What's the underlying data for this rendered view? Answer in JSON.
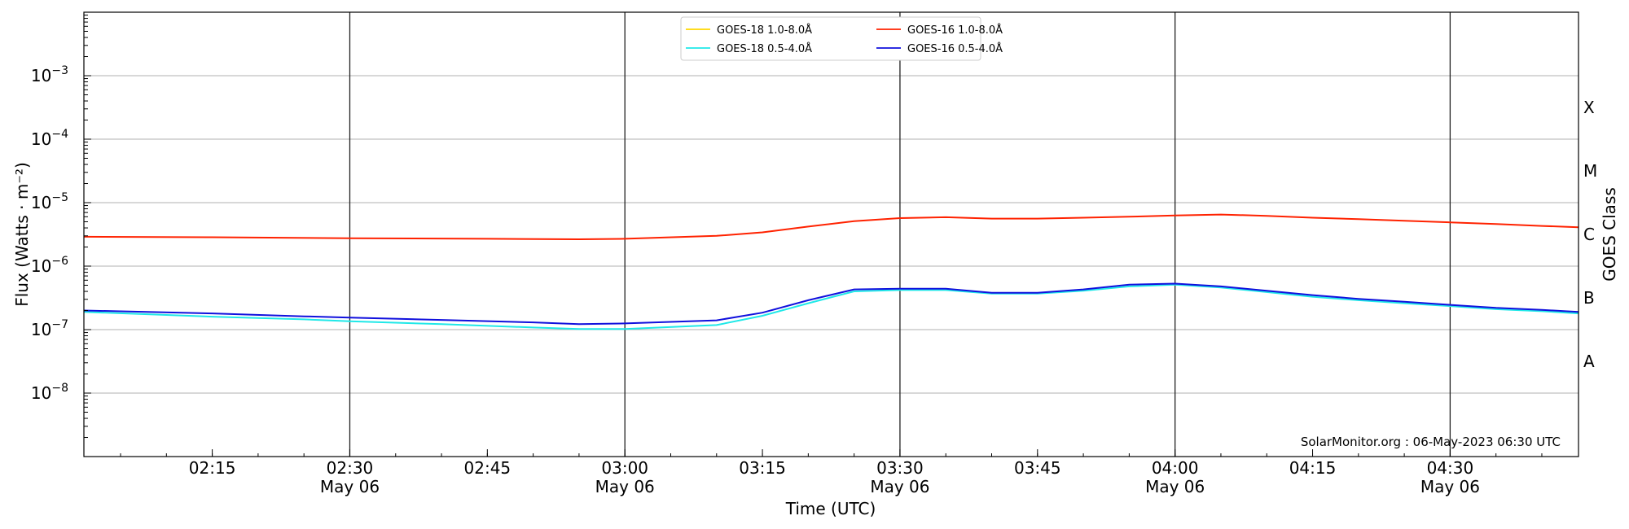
{
  "chart_data": {
    "type": "line",
    "xlabel": "Time (UTC)",
    "ylabel": "Flux (Watts · m⁻²)",
    "y2label": "GOES Class",
    "yscale": "log",
    "xlim": [
      "02:01",
      "04:44"
    ],
    "ylim": [
      1e-09,
      0.01
    ],
    "grid": "horizontal",
    "legend": "top-center",
    "x_ticks": [
      {
        "time": "02:15",
        "label": "02:15",
        "sub": ""
      },
      {
        "time": "02:30",
        "label": "02:30",
        "sub": "May 06"
      },
      {
        "time": "02:45",
        "label": "02:45",
        "sub": ""
      },
      {
        "time": "03:00",
        "label": "03:00",
        "sub": "May 06"
      },
      {
        "time": "03:15",
        "label": "03:15",
        "sub": ""
      },
      {
        "time": "03:30",
        "label": "03:30",
        "sub": "May 06"
      },
      {
        "time": "03:45",
        "label": "03:45",
        "sub": ""
      },
      {
        "time": "04:00",
        "label": "04:00",
        "sub": "May 06"
      },
      {
        "time": "04:15",
        "label": "04:15",
        "sub": ""
      },
      {
        "time": "04:30",
        "label": "04:30",
        "sub": "May 06"
      }
    ],
    "vlines": [
      "02:30",
      "03:00",
      "03:30",
      "04:00",
      "04:30"
    ],
    "y_ticks": [
      {
        "exp": -8,
        "label": "10",
        "sup": "−8"
      },
      {
        "exp": -7,
        "label": "10",
        "sup": "−7"
      },
      {
        "exp": -6,
        "label": "10",
        "sup": "−6"
      },
      {
        "exp": -5,
        "label": "10",
        "sup": "−5"
      },
      {
        "exp": -4,
        "label": "10",
        "sup": "−4"
      },
      {
        "exp": -3,
        "label": "10",
        "sup": "−3"
      }
    ],
    "goes_classes": [
      {
        "label": "A",
        "exp": -7.5
      },
      {
        "label": "B",
        "exp": -6.5
      },
      {
        "label": "C",
        "exp": -5.5
      },
      {
        "label": "M",
        "exp": -4.5
      },
      {
        "label": "X",
        "exp": -3.5
      }
    ],
    "series": [
      {
        "name": "GOES-18 1.0-8.0Å",
        "color": "#FFD700",
        "x": [],
        "y": []
      },
      {
        "name": "GOES-18 0.5-4.0Å",
        "color": "#20E8E8",
        "x": [
          "02:01",
          "02:15",
          "02:25",
          "02:30",
          "02:40",
          "02:50",
          "02:55",
          "03:00",
          "03:10",
          "03:15",
          "03:20",
          "03:25",
          "03:30",
          "03:35",
          "03:40",
          "03:45",
          "03:50",
          "03:55",
          "04:00",
          "04:05",
          "04:10",
          "04:15",
          "04:20",
          "04:25",
          "04:30",
          "04:35",
          "04:40",
          "04:44"
        ],
        "y": [
          1.9e-07,
          1.6e-07,
          1.45e-07,
          1.35e-07,
          1.22e-07,
          1.08e-07,
          1.02e-07,
          1.02e-07,
          1.18e-07,
          1.65e-07,
          2.6e-07,
          4e-07,
          4.2e-07,
          4.2e-07,
          3.7e-07,
          3.7e-07,
          4.1e-07,
          4.8e-07,
          5.1e-07,
          4.6e-07,
          3.9e-07,
          3.3e-07,
          2.9e-07,
          2.6e-07,
          2.35e-07,
          2.1e-07,
          1.95e-07,
          1.8e-07
        ]
      },
      {
        "name": "GOES-16 1.0-8.0Å",
        "color": "#FF2200",
        "x": [
          "02:01",
          "02:15",
          "02:30",
          "02:45",
          "02:55",
          "03:00",
          "03:10",
          "03:15",
          "03:20",
          "03:25",
          "03:30",
          "03:35",
          "03:40",
          "03:45",
          "03:50",
          "03:55",
          "04:00",
          "04:05",
          "04:10",
          "04:15",
          "04:20",
          "04:25",
          "04:30",
          "04:35",
          "04:40",
          "04:44"
        ],
        "y": [
          2.9e-06,
          2.85e-06,
          2.75e-06,
          2.7e-06,
          2.65e-06,
          2.7e-06,
          3e-06,
          3.4e-06,
          4.2e-06,
          5.1e-06,
          5.7e-06,
          5.9e-06,
          5.6e-06,
          5.6e-06,
          5.8e-06,
          6e-06,
          6.3e-06,
          6.5e-06,
          6.2e-06,
          5.8e-06,
          5.5e-06,
          5.2e-06,
          4.9e-06,
          4.6e-06,
          4.3e-06,
          4.1e-06
        ]
      },
      {
        "name": "GOES-16 0.5-4.0Å",
        "color": "#1010DD",
        "x": [
          "02:01",
          "02:15",
          "02:25",
          "02:30",
          "02:40",
          "02:50",
          "02:55",
          "03:00",
          "03:10",
          "03:15",
          "03:20",
          "03:25",
          "03:30",
          "03:35",
          "03:40",
          "03:45",
          "03:50",
          "03:55",
          "04:00",
          "04:05",
          "04:10",
          "04:15",
          "04:20",
          "04:25",
          "04:30",
          "04:35",
          "04:40",
          "04:44"
        ],
        "y": [
          2e-07,
          1.8e-07,
          1.62e-07,
          1.55e-07,
          1.42e-07,
          1.3e-07,
          1.22e-07,
          1.25e-07,
          1.4e-07,
          1.85e-07,
          2.9e-07,
          4.3e-07,
          4.4e-07,
          4.4e-07,
          3.8e-07,
          3.8e-07,
          4.3e-07,
          5.1e-07,
          5.3e-07,
          4.8e-07,
          4.1e-07,
          3.5e-07,
          3.05e-07,
          2.75e-07,
          2.45e-07,
          2.2e-07,
          2.05e-07,
          1.9e-07
        ]
      }
    ],
    "annotation": "SolarMonitor.org : 06-May-2023 06:30 UTC"
  }
}
